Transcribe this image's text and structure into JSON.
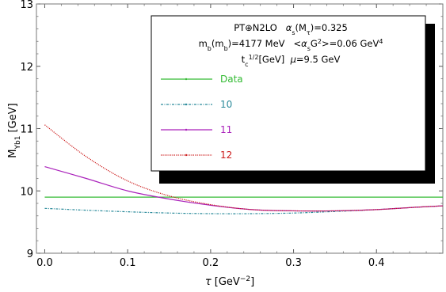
{
  "chart_data": {
    "type": "line",
    "xlabel": "τ [GeV⁻²]",
    "ylabel": "M_Υb1 [GeV]",
    "xlim": [
      -0.01,
      0.48
    ],
    "ylim": [
      9,
      13
    ],
    "xticks": [
      0.0,
      0.1,
      0.2,
      0.3,
      0.4
    ],
    "xtick_labels": [
      "0.0",
      "0.1",
      "0.2",
      "0.3",
      "0.4"
    ],
    "yticks": [
      9,
      10,
      11,
      12,
      13
    ],
    "ytick_labels": [
      "9",
      "10",
      "11",
      "12",
      "13"
    ],
    "annotation": {
      "line1": "PT⊕N2LO   αs(Mτ)=0.325",
      "line2": "mb(mb)=4177 MeV   <αsG²>=0.06 GeV⁴",
      "line3": "tc1/2[GeV]   μ=9.5 GeV"
    },
    "legend_position": "top-right",
    "series": [
      {
        "name": "Data",
        "color": "#33bb33",
        "dash": "",
        "x": [
          0.0,
          0.48
        ],
        "y": [
          9.9,
          9.9
        ]
      },
      {
        "name": "10",
        "color": "#2a8a9a",
        "dash": "3,1.5,1,1.5",
        "x": [
          0.0,
          0.05,
          0.1,
          0.15,
          0.2,
          0.25,
          0.3,
          0.35,
          0.4,
          0.45,
          0.48
        ],
        "y": [
          9.72,
          9.69,
          9.665,
          9.645,
          9.635,
          9.635,
          9.645,
          9.67,
          9.7,
          9.74,
          9.76
        ]
      },
      {
        "name": "11",
        "color": "#aa22bb",
        "dash": "",
        "x": [
          0.0,
          0.05,
          0.1,
          0.15,
          0.2,
          0.25,
          0.3,
          0.35,
          0.4,
          0.45,
          0.48
        ],
        "y": [
          10.39,
          10.2,
          10.0,
          9.87,
          9.77,
          9.7,
          9.68,
          9.68,
          9.7,
          9.74,
          9.76
        ]
      },
      {
        "name": "12",
        "color": "#cc1a1a",
        "dash": "1.2,1.2",
        "x": [
          0.0,
          0.05,
          0.1,
          0.15,
          0.2,
          0.25,
          0.3,
          0.35,
          0.4,
          0.45,
          0.48
        ],
        "y": [
          11.06,
          10.55,
          10.16,
          9.92,
          9.78,
          9.7,
          9.68,
          9.68,
          9.7,
          9.74,
          9.76
        ]
      }
    ]
  }
}
